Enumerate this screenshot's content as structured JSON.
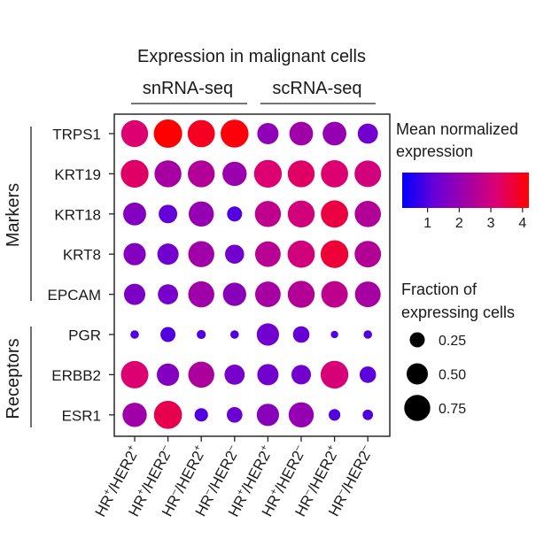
{
  "chart_data": {
    "type": "dotplot",
    "title": "Expression in malignant cells",
    "column_groups": [
      {
        "label": "snRNA-seq",
        "columns": [
          0,
          1,
          2,
          3
        ]
      },
      {
        "label": "scRNA-seq",
        "columns": [
          4,
          5,
          6,
          7
        ]
      }
    ],
    "columns": [
      {
        "hr": "+",
        "her2": "+"
      },
      {
        "hr": "+",
        "her2": "–"
      },
      {
        "hr": "–",
        "her2": "+"
      },
      {
        "hr": "–",
        "her2": "–"
      },
      {
        "hr": "+",
        "her2": "+"
      },
      {
        "hr": "+",
        "her2": "–"
      },
      {
        "hr": "–",
        "her2": "+"
      },
      {
        "hr": "–",
        "her2": "–"
      }
    ],
    "label_parts": {
      "hr": "HR",
      "sep": "/HER2"
    },
    "row_groups": [
      {
        "label": "Markers",
        "rows": [
          0,
          1,
          2,
          3,
          4
        ]
      },
      {
        "label": "Receptors",
        "rows": [
          5,
          6,
          7
        ]
      }
    ],
    "rows": [
      "TRPS1",
      "KRT19",
      "KRT18",
      "KRT8",
      "EPCAM",
      "PGR",
      "ERBB2",
      "ESR1"
    ],
    "mean_expression": [
      [
        3.2,
        4.2,
        3.9,
        4.1,
        1.9,
        2.2,
        2.0,
        1.4
      ],
      [
        3.3,
        2.3,
        2.5,
        2.1,
        3.2,
        3.3,
        3.2,
        3.0
      ],
      [
        1.7,
        1.2,
        2.0,
        1.0,
        2.7,
        3.0,
        3.6,
        2.5
      ],
      [
        1.7,
        1.4,
        2.2,
        1.4,
        2.6,
        3.0,
        3.7,
        2.5
      ],
      [
        1.6,
        1.5,
        2.2,
        1.8,
        2.3,
        2.5,
        2.7,
        2.3
      ],
      [
        1.0,
        1.0,
        1.0,
        1.0,
        1.4,
        1.2,
        1.0,
        1.0
      ],
      [
        3.2,
        1.7,
        2.4,
        1.5,
        1.4,
        1.4,
        3.1,
        1.1
      ],
      [
        2.2,
        3.5,
        1.0,
        1.3,
        1.8,
        2.0,
        1.0,
        1.0
      ]
    ],
    "fraction_expressing": [
      [
        0.8,
        0.89,
        0.82,
        0.86,
        0.5,
        0.62,
        0.62,
        0.45
      ],
      [
        0.85,
        0.8,
        0.8,
        0.65,
        0.85,
        0.8,
        0.82,
        0.78
      ],
      [
        0.58,
        0.38,
        0.7,
        0.25,
        0.75,
        0.8,
        0.82,
        0.76
      ],
      [
        0.55,
        0.5,
        0.75,
        0.4,
        0.72,
        0.82,
        0.85,
        0.77
      ],
      [
        0.5,
        0.45,
        0.75,
        0.6,
        0.72,
        0.8,
        0.78,
        0.73
      ],
      [
        0.08,
        0.25,
        0.09,
        0.08,
        0.55,
        0.3,
        0.06,
        0.08
      ],
      [
        0.83,
        0.55,
        0.75,
        0.45,
        0.5,
        0.42,
        0.85,
        0.3
      ],
      [
        0.65,
        0.87,
        0.2,
        0.27,
        0.55,
        0.7,
        0.15,
        0.12
      ]
    ],
    "color_scale": {
      "title_lines": [
        "Mean normalized",
        "expression"
      ],
      "min": 0.2,
      "max": 4.2,
      "ticks": [
        1,
        2,
        3,
        4
      ],
      "colors": [
        "#0000ff",
        "#ff0000"
      ]
    },
    "size_legend": {
      "title_lines": [
        "Fraction of",
        "expressing cells"
      ],
      "values": [
        0.25,
        0.5,
        0.75
      ],
      "labels": [
        "0.25",
        "0.50",
        "0.75"
      ],
      "color": "#000000"
    }
  }
}
